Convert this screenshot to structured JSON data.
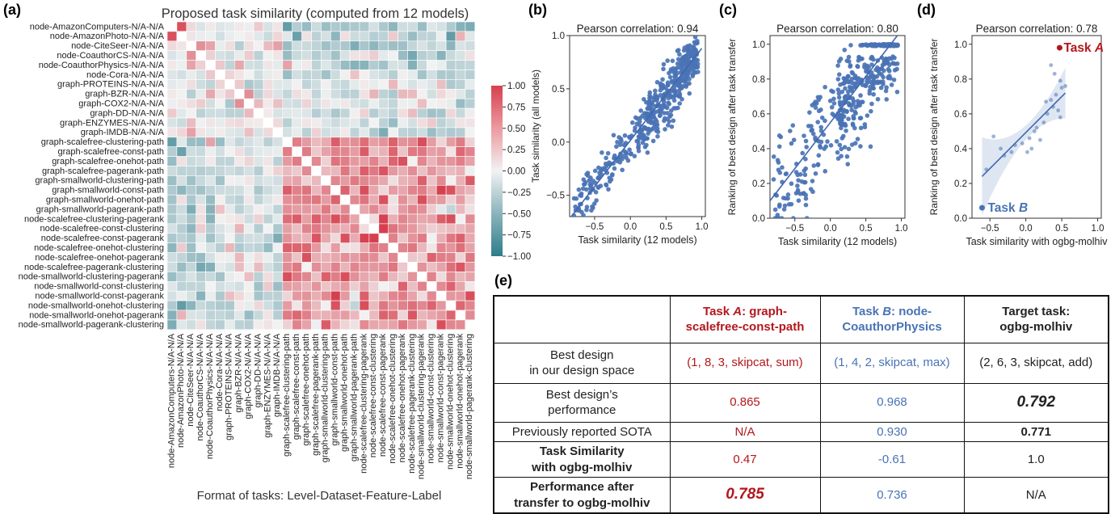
{
  "panel_labels": {
    "a": "(a)",
    "b": "(b)",
    "c": "(c)",
    "d": "(d)",
    "e": "(e)"
  },
  "heatmap": {
    "title": "Proposed task similarity (computed from 12 models)",
    "footer": "Format of tasks: Level-Dataset-Feature-Label",
    "colorbar_ticks": [
      "1.00",
      "0.75",
      "0.50",
      "0.25",
      "0.00",
      "−0.25",
      "−0.50",
      "−0.75",
      "−1.00"
    ],
    "colors": {
      "positive": "#d6404e",
      "neutral": "#f2f2f2",
      "negative": "#2e7d8c"
    }
  },
  "chart_data": [
    {
      "type": "heatmap",
      "panel": "a",
      "title": "Proposed task similarity (computed from 12 models)",
      "xlabel": "Format of tasks: Level-Dataset-Feature-Label",
      "labels": [
        "node-AmazonComputers-N/A-N/A",
        "node-AmazonPhoto-N/A-N/A",
        "node-CiteSeer-N/A-N/A",
        "node-CoauthorCS-N/A-N/A",
        "node-CoauthorPhysics-N/A-N/A",
        "node-Cora-N/A-N/A",
        "graph-PROTEINS-N/A-N/A",
        "graph-BZR-N/A-N/A",
        "graph-COX2-N/A-N/A",
        "graph-DD-N/A-N/A",
        "graph-ENZYMES-N/A-N/A",
        "graph-IMDB-N/A-N/A",
        "graph-scalefree-clustering-path",
        "graph-scalefree-const-path",
        "graph-scalefree-onehot-path",
        "graph-scalefree-pagerank-path",
        "graph-smallworld-clustering-path",
        "graph-smallworld-const-path",
        "graph-smallworld-onehot-path",
        "graph-smallworld-pagerank-path",
        "node-scalefree-clustering-pagerank",
        "node-scalefree-const-clustering",
        "node-scalefree-const-pagerank",
        "node-scalefree-onehot-clustering",
        "node-scalefree-onehot-pagerank",
        "node-scalefree-pagerank-clustering",
        "node-smallworld-clustering-pagerank",
        "node-smallworld-const-clustering",
        "node-smallworld-const-pagerank",
        "node-smallworld-onehot-clustering",
        "node-smallworld-onehot-pagerank",
        "node-smallworld-pagerank-clustering"
      ],
      "vmin": -1,
      "vmax": 1,
      "pattern": "tasks 0-11 weakly correlated with each other and negatively with tasks 12-31; tasks 12-31 mutually positive"
    },
    {
      "type": "scatter",
      "panel": "b",
      "title": "Pearson correlation: 0.94",
      "xlabel": "Task similarity (12 models)",
      "ylabel": "Task similarity (all models)",
      "xlim": [
        -0.85,
        1.05
      ],
      "ylim": [
        -0.7,
        1.0
      ],
      "xticks": [
        "−0.5",
        "0.0",
        "0.5",
        "1.0"
      ],
      "yticks": [
        "−0.5",
        "0.0",
        "0.5",
        "1.0"
      ],
      "fit": [
        [
          -0.85,
          -0.72
        ],
        [
          1.0,
          0.88
        ]
      ],
      "n_points": 480,
      "noise": 0.12
    },
    {
      "type": "scatter",
      "panel": "c",
      "title": "Pearson correlation: 0.80",
      "xlabel": "Task similarity (12 models)",
      "ylabel": "Ranking of best design after task transfer",
      "xlim": [
        -0.85,
        1.05
      ],
      "ylim": [
        0,
        1.05
      ],
      "xticks": [
        "−0.5",
        "0.0",
        "0.5",
        "1.0"
      ],
      "yticks": [
        "0.0",
        "0.2",
        "0.4",
        "0.6",
        "0.8",
        "1.0"
      ],
      "fit": [
        [
          -0.85,
          0.1
        ],
        [
          1.0,
          1.08
        ]
      ],
      "n_points": 480,
      "noise": 0.15
    },
    {
      "type": "scatter",
      "panel": "d",
      "title": "Pearson correlation: 0.78",
      "xlabel": "Task similarity with ogbg-molhiv",
      "ylabel": "Ranking of best design after task transfer",
      "xlim": [
        -0.75,
        1.05
      ],
      "ylim": [
        0,
        1.05
      ],
      "xticks": [
        "−0.5",
        "0.0",
        "0.5",
        "1.0"
      ],
      "yticks": [
        "0.0",
        "0.2",
        "0.4",
        "0.6",
        "0.8",
        "1.0"
      ],
      "fit": [
        [
          -0.61,
          0.24
        ],
        [
          0.55,
          0.72
        ]
      ],
      "points": [
        [
          0.47,
          0.98
        ],
        [
          -0.61,
          0.06
        ],
        [
          0.35,
          0.88
        ],
        [
          0.4,
          0.83
        ],
        [
          0.48,
          0.79
        ],
        [
          0.5,
          0.75
        ],
        [
          0.55,
          0.76
        ],
        [
          0.42,
          0.71
        ],
        [
          0.35,
          0.68
        ],
        [
          0.28,
          0.67
        ],
        [
          0.45,
          0.62
        ],
        [
          0.48,
          0.58
        ],
        [
          0.3,
          0.6
        ],
        [
          0.12,
          0.5
        ],
        [
          0.2,
          0.45
        ],
        [
          -0.05,
          0.43
        ],
        [
          0.08,
          0.4
        ],
        [
          -0.2,
          0.38
        ],
        [
          -0.15,
          0.42
        ],
        [
          0.05,
          0.46
        ],
        [
          0.02,
          0.38
        ],
        [
          -0.3,
          0.36
        ],
        [
          -0.45,
          0.47
        ],
        [
          -0.55,
          0.28
        ],
        [
          -0.35,
          0.4
        ],
        [
          0.25,
          0.55
        ],
        [
          0.15,
          0.52
        ],
        [
          0.38,
          0.64
        ]
      ],
      "annotations": [
        {
          "label": "Task",
          "var": "A",
          "x": 0.47,
          "y": 0.98,
          "color": "#b3171d"
        },
        {
          "label": "Task",
          "var": "B",
          "x": -0.61,
          "y": 0.06,
          "color": "#4a73b5"
        }
      ]
    },
    {
      "type": "table",
      "panel": "e",
      "headers": [
        {
          "prefix": "Task ",
          "var": "A",
          "suffix": ": graph-scalefree-const-path"
        },
        {
          "prefix": "Task ",
          "var": "B",
          "suffix": ": node-CoauthorPhysics"
        },
        {
          "prefix": "",
          "var": "",
          "suffix": "Target task: ogbg-molhiv"
        }
      ],
      "rows": [
        {
          "label": "Best design in our design space",
          "values": [
            "(1, 8, 3, skipcat, sum)",
            "(1, 4, 2, skipcat, max)",
            "(2, 6, 3, skipcat, add)"
          ]
        },
        {
          "label": "Best design’s performance",
          "values": [
            "0.865",
            "0.968",
            "0.792"
          ]
        },
        {
          "label": "Previously reported SOTA",
          "values": [
            "N/A",
            "0.930",
            "0.771"
          ]
        },
        {
          "label": "Task Similarity with ogbg-molhiv",
          "values": [
            "0.47",
            "-0.61",
            "1.0"
          ]
        },
        {
          "label": "Performance after transfer to ogbg-molhiv",
          "values": [
            "0.785",
            "0.736",
            "N/A"
          ]
        }
      ]
    }
  ],
  "table": {
    "h_a_1": "Task ",
    "h_a_var": "A",
    "h_a_2": ": graph-",
    "h_a_3": "scalefree-const-path",
    "h_b_1": "Task ",
    "h_b_var": "B",
    "h_b_2": ": node-",
    "h_b_3": "CoauthorPhysics",
    "h_t_1": "Target task:",
    "h_t_2": "ogbg-molhiv",
    "r1_l1": "Best design",
    "r1_l2": "in our design space",
    "r1_a": "(1, 8, 3, skipcat, sum)",
    "r1_b": "(1, 4, 2, skipcat, max)",
    "r1_t": "(2, 6, 3, skipcat, add)",
    "r2_l1": "Best design’s",
    "r2_l2": "performance",
    "r2_a": "0.865",
    "r2_b": "0.968",
    "r2_t": "0.792",
    "r3_l": "Previously reported SOTA",
    "r3_a": "N/A",
    "r3_b": "0.930",
    "r3_t": "0.771",
    "r4_l1": "Task Similarity",
    "r4_l2": "with ogbg-molhiv",
    "r4_a": "0.47",
    "r4_b": "-0.61",
    "r4_t": "1.0",
    "r5_l1": "Performance after",
    "r5_l2": "transfer to ogbg-molhiv",
    "r5_a": "0.785",
    "r5_b": "0.736",
    "r5_t": "N/A"
  }
}
